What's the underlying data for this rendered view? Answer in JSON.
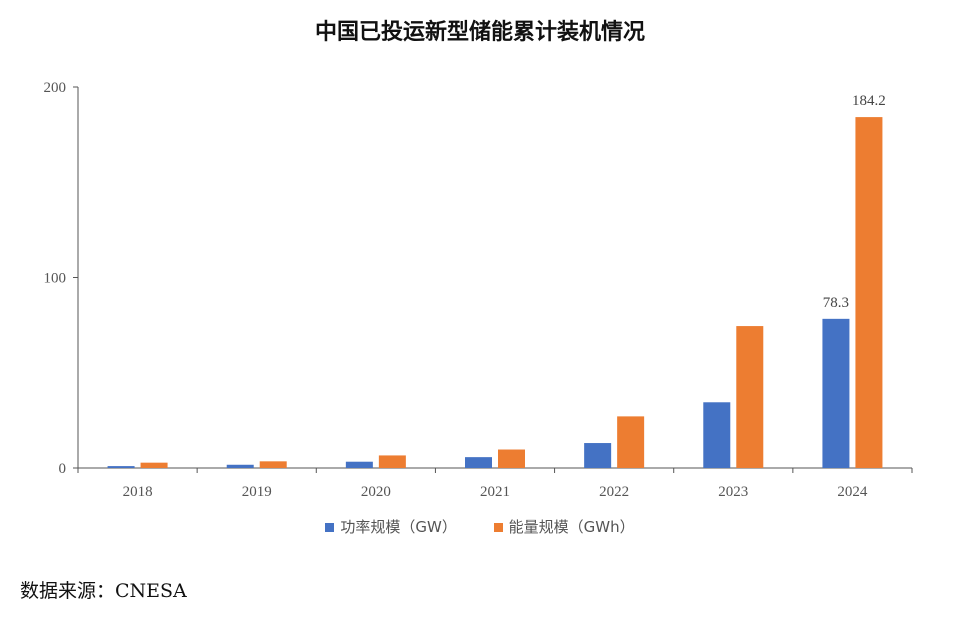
{
  "chart_data": {
    "type": "bar",
    "title": "中国已投运新型储能累计装机情况",
    "categories": [
      "2018",
      "2019",
      "2020",
      "2021",
      "2022",
      "2023",
      "2024"
    ],
    "series": [
      {
        "name": "功率规模（GW）",
        "color": "#4472C4",
        "values": [
          1.0,
          1.7,
          3.3,
          5.7,
          13.1,
          34.5,
          78.3
        ]
      },
      {
        "name": "能量规模（GWh）",
        "color": "#ED7D31",
        "values": [
          2.8,
          3.5,
          6.6,
          9.7,
          27.1,
          74.5,
          184.2
        ]
      }
    ],
    "ylim": [
      0,
      200
    ],
    "yticks": [
      0,
      100,
      200
    ],
    "data_labels": [
      {
        "series": 0,
        "category": "2024",
        "text": "78.3"
      },
      {
        "series": 1,
        "category": "2024",
        "text": "184.2"
      }
    ],
    "xlabel": "",
    "ylabel": "",
    "grid": false,
    "legend_position": "bottom"
  },
  "source": "数据来源：CNESA"
}
